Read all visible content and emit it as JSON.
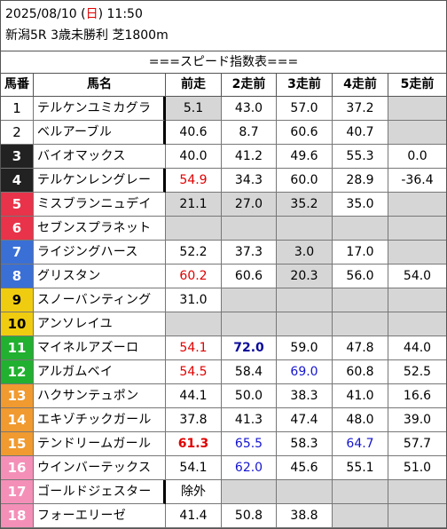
{
  "header": {
    "datetime_prefix": "2025/08/10 (",
    "weekday": "日",
    "datetime_suffix": ") 11:50",
    "race": "新潟5R 3歳未勝利 芝1800m"
  },
  "banner": "===スピード指数表===",
  "columns": [
    "馬番",
    "馬名",
    "前走",
    "2走前",
    "3走前",
    "4走前",
    "5走前"
  ],
  "colors": {
    "frame1": "#ffffff",
    "frame2": "#ffffff",
    "frame3": "#222222",
    "frame4": "#222222",
    "frame5": "#e8334a",
    "frame6": "#e8334a",
    "frame7": "#3a6fd6",
    "frame8": "#3a6fd6",
    "frame9": "#f0cc10",
    "frame10": "#f0cc10",
    "frame11": "#22b030",
    "frame12": "#22b030",
    "frame13": "#f09a30",
    "frame14": "#f09a30",
    "frame15": "#f09a30",
    "frame16": "#f490b8",
    "frame17": "#f490b8",
    "frame18": "#f490b8"
  },
  "rows": [
    {
      "num": "1",
      "name": "テルケンユミカグラ",
      "v": [
        "5.1",
        "43.0",
        "57.0",
        "37.2",
        ""
      ],
      "g": [
        1,
        0,
        0,
        0,
        1
      ],
      "c": [
        "",
        "",
        "",
        "",
        ""
      ],
      "b": [
        0,
        0,
        0,
        0,
        0
      ],
      "thick": 1
    },
    {
      "num": "2",
      "name": "ベルアーブル",
      "v": [
        "40.6",
        "8.7",
        "60.6",
        "40.7",
        ""
      ],
      "g": [
        0,
        0,
        0,
        0,
        1
      ],
      "c": [
        "",
        "",
        "",
        "",
        ""
      ],
      "b": [
        0,
        0,
        0,
        0,
        0
      ],
      "thick": 1
    },
    {
      "num": "3",
      "name": "バイオマックス",
      "v": [
        "40.0",
        "41.2",
        "49.6",
        "55.3",
        "0.0"
      ],
      "g": [
        0,
        0,
        0,
        0,
        0
      ],
      "c": [
        "",
        "",
        "",
        "",
        ""
      ],
      "b": [
        0,
        0,
        0,
        0,
        0
      ],
      "thick": 0
    },
    {
      "num": "4",
      "name": "テルケンレングレー",
      "v": [
        "54.9",
        "34.3",
        "60.0",
        "28.9",
        "-36.4"
      ],
      "g": [
        0,
        0,
        0,
        0,
        0
      ],
      "c": [
        "red",
        "",
        "",
        "",
        ""
      ],
      "b": [
        0,
        0,
        0,
        0,
        0
      ],
      "thick": 1
    },
    {
      "num": "5",
      "name": "ミスブランニュデイ",
      "v": [
        "21.1",
        "27.0",
        "35.2",
        "35.0",
        ""
      ],
      "g": [
        1,
        1,
        1,
        0,
        1
      ],
      "c": [
        "",
        "",
        "",
        "",
        ""
      ],
      "b": [
        0,
        0,
        0,
        0,
        0
      ],
      "thick": 0
    },
    {
      "num": "6",
      "name": "セブンスプラネット",
      "v": [
        "",
        "",
        "",
        "",
        ""
      ],
      "g": [
        1,
        1,
        1,
        1,
        1
      ],
      "c": [
        "",
        "",
        "",
        "",
        ""
      ],
      "b": [
        0,
        0,
        0,
        0,
        0
      ],
      "thick": 0
    },
    {
      "num": "7",
      "name": "ライジングハース",
      "v": [
        "52.2",
        "37.3",
        "3.0",
        "17.0",
        ""
      ],
      "g": [
        0,
        0,
        1,
        0,
        1
      ],
      "c": [
        "",
        "",
        "",
        "",
        ""
      ],
      "b": [
        0,
        0,
        0,
        0,
        0
      ],
      "thick": 0
    },
    {
      "num": "8",
      "name": "グリスタン",
      "v": [
        "60.2",
        "60.6",
        "20.3",
        "56.0",
        "54.0"
      ],
      "g": [
        0,
        0,
        1,
        0,
        0
      ],
      "c": [
        "red",
        "",
        "",
        "",
        ""
      ],
      "b": [
        0,
        0,
        0,
        0,
        0
      ],
      "thick": 0
    },
    {
      "num": "9",
      "name": "スノーバンティング",
      "v": [
        "31.0",
        "",
        "",
        "",
        ""
      ],
      "g": [
        0,
        1,
        1,
        1,
        1
      ],
      "c": [
        "",
        "",
        "",
        "",
        ""
      ],
      "b": [
        0,
        0,
        0,
        0,
        0
      ],
      "thick": 0
    },
    {
      "num": "10",
      "name": "アンソレイユ",
      "v": [
        "",
        "",
        "",
        "",
        ""
      ],
      "g": [
        1,
        1,
        1,
        1,
        1
      ],
      "c": [
        "",
        "",
        "",
        "",
        ""
      ],
      "b": [
        0,
        0,
        0,
        0,
        0
      ],
      "thick": 0
    },
    {
      "num": "11",
      "name": "マイネルアズーロ",
      "v": [
        "54.1",
        "72.0",
        "59.0",
        "47.8",
        "44.0"
      ],
      "g": [
        0,
        0,
        0,
        0,
        0
      ],
      "c": [
        "red",
        "dark",
        "",
        "",
        ""
      ],
      "b": [
        0,
        1,
        0,
        0,
        0
      ],
      "thick": 0
    },
    {
      "num": "12",
      "name": "アルガムベイ",
      "v": [
        "54.5",
        "58.4",
        "69.0",
        "60.8",
        "52.5"
      ],
      "g": [
        0,
        0,
        0,
        0,
        0
      ],
      "c": [
        "red",
        "",
        "blue",
        "",
        ""
      ],
      "b": [
        0,
        0,
        0,
        0,
        0
      ],
      "thick": 0
    },
    {
      "num": "13",
      "name": "ハクサンテュポン",
      "v": [
        "44.1",
        "50.0",
        "38.3",
        "41.0",
        "16.6"
      ],
      "g": [
        0,
        0,
        0,
        0,
        0
      ],
      "c": [
        "",
        "",
        "",
        "",
        ""
      ],
      "b": [
        0,
        0,
        0,
        0,
        0
      ],
      "thick": 0
    },
    {
      "num": "14",
      "name": "エキゾチックガール",
      "v": [
        "37.8",
        "41.3",
        "47.4",
        "48.0",
        "39.0"
      ],
      "g": [
        0,
        0,
        0,
        0,
        0
      ],
      "c": [
        "",
        "",
        "",
        "",
        ""
      ],
      "b": [
        0,
        0,
        0,
        0,
        0
      ],
      "thick": 0
    },
    {
      "num": "15",
      "name": "テンドリームガール",
      "v": [
        "61.3",
        "65.5",
        "58.3",
        "64.7",
        "57.7"
      ],
      "g": [
        0,
        0,
        0,
        0,
        0
      ],
      "c": [
        "red",
        "blue",
        "",
        "blue",
        ""
      ],
      "b": [
        1,
        0,
        0,
        0,
        0
      ],
      "thick": 0
    },
    {
      "num": "16",
      "name": "ウインバーテックス",
      "v": [
        "54.1",
        "62.0",
        "45.6",
        "55.1",
        "51.0"
      ],
      "g": [
        0,
        0,
        0,
        0,
        0
      ],
      "c": [
        "",
        "blue",
        "",
        "",
        ""
      ],
      "b": [
        0,
        0,
        0,
        0,
        0
      ],
      "thick": 0
    },
    {
      "num": "17",
      "name": "ゴールドジェスター",
      "v": [
        "除外",
        "",
        "",
        "",
        ""
      ],
      "g": [
        0,
        1,
        1,
        1,
        1
      ],
      "c": [
        "",
        "",
        "",
        "",
        ""
      ],
      "b": [
        0,
        0,
        0,
        0,
        0
      ],
      "thick": 1
    },
    {
      "num": "18",
      "name": "フォーエリーゼ",
      "v": [
        "41.4",
        "50.8",
        "38.8",
        "",
        ""
      ],
      "g": [
        0,
        0,
        0,
        1,
        1
      ],
      "c": [
        "",
        "",
        "",
        "",
        ""
      ],
      "b": [
        0,
        0,
        0,
        0,
        0
      ],
      "thick": 0
    }
  ]
}
